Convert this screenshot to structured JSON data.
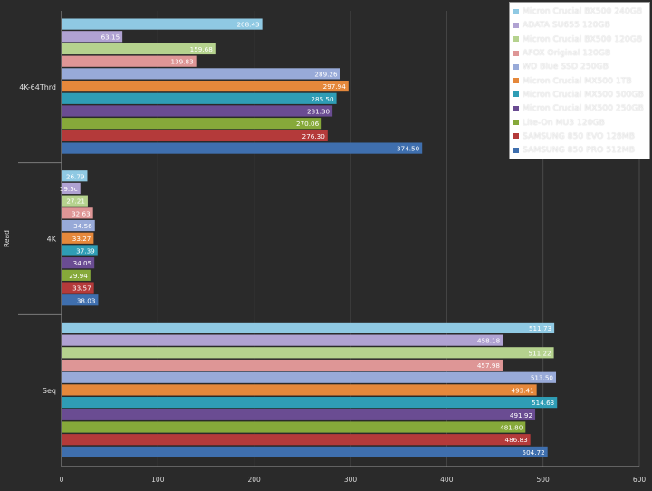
{
  "chart_data": {
    "type": "bar",
    "orientation": "horizontal",
    "ylabel": "Read",
    "categories": [
      "4K-64Thrd",
      "4K",
      "Seq"
    ],
    "x_ticks": [
      0,
      100,
      200,
      300,
      400,
      500,
      600
    ],
    "xlim": [
      0,
      600
    ],
    "grid": true,
    "legend_position": "top-right",
    "series": [
      {
        "name": "Micron Crucial BX500 240GB",
        "color": "#8fc9e3",
        "values": [
          208.43,
          26.79,
          511.73
        ],
        "labels": [
          "208.43",
          "26.79",
          "511.73"
        ]
      },
      {
        "name": "ADATA SU655 120GB",
        "color": "#b0a2d2",
        "values": [
          63.15,
          19.5,
          458.18
        ],
        "labels": [
          "63.15",
          "19.5c",
          "458.18"
        ]
      },
      {
        "name": "Micron Crucial BX500 120GB",
        "color": "#b5d28e",
        "values": [
          159.68,
          27.21,
          511.22
        ],
        "labels": [
          "159.68",
          "27.21",
          "511.22"
        ]
      },
      {
        "name": "AFOX Original 120GB",
        "color": "#de9696",
        "values": [
          139.83,
          32.63,
          457.98
        ],
        "labels": [
          "139.83",
          "32.63",
          "457.98"
        ]
      },
      {
        "name": "WD Blue SSD 250GB",
        "color": "#98aad8",
        "values": [
          289.26,
          34.56,
          513.5
        ],
        "labels": [
          "289.26",
          "34.56",
          "513.50"
        ]
      },
      {
        "name": "Micron Crucial MX500 1TB",
        "color": "#e5883b",
        "values": [
          297.94,
          33.27,
          493.41
        ],
        "labels": [
          "297.94",
          "33.27",
          "493.41"
        ]
      },
      {
        "name": "Micron Crucial MX500 500GB",
        "color": "#2f9db5",
        "values": [
          285.5,
          37.39,
          514.63
        ],
        "labels": [
          "285.50",
          "37.39",
          "514.63"
        ]
      },
      {
        "name": "Micron Crucial MX500 250GB",
        "color": "#6a4c92",
        "values": [
          281.3,
          34.05,
          491.92
        ],
        "labels": [
          "281.30",
          "34.05",
          "491.92"
        ]
      },
      {
        "name": "Lite-On MU3 120GB",
        "color": "#86a93a",
        "values": [
          270.06,
          29.94,
          481.8
        ],
        "labels": [
          "270.06",
          "29.94",
          "481.80"
        ]
      },
      {
        "name": "SAMSUNG 850 EVO 128MB",
        "color": "#b43a3a",
        "values": [
          276.3,
          33.57,
          486.83
        ],
        "labels": [
          "276.30",
          "33.57",
          "486.83"
        ]
      },
      {
        "name": "SAMSUNG 850 PRO 512MB",
        "color": "#3f6fae",
        "values": [
          374.5,
          38.03,
          504.72
        ],
        "labels": [
          "374.50",
          "38.03",
          "504.72"
        ]
      }
    ]
  }
}
